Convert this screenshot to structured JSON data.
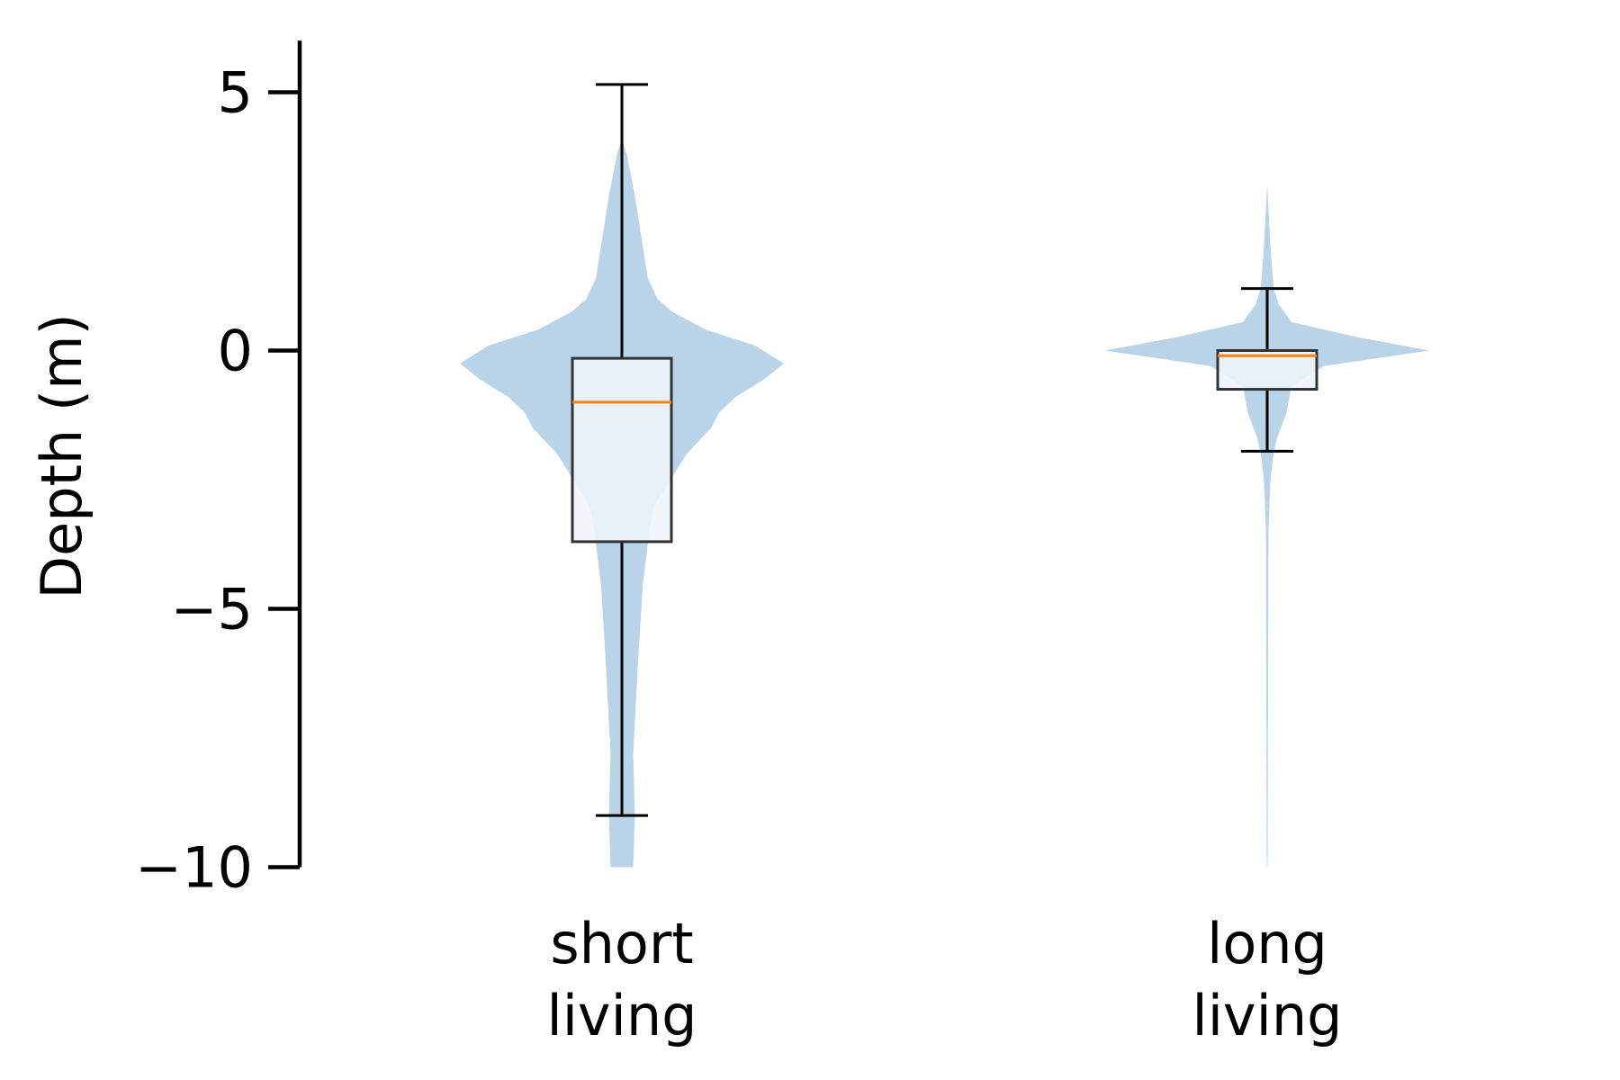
{
  "chart_data": {
    "type": "violin",
    "ylabel": "Depth (m)",
    "xlabel": "",
    "ylim": [
      -10,
      6
    ],
    "yticks": [
      {
        "value": 5,
        "label": "5"
      },
      {
        "value": 0,
        "label": "0"
      },
      {
        "value": -5,
        "label": "−5"
      },
      {
        "value": -10,
        "label": "−10"
      }
    ],
    "grid": false,
    "colors": {
      "violin": "#b9d4e8",
      "median": "#ff7f0e",
      "box_fill": "#f0f5fa",
      "box_edge": "#333333",
      "axis": "#000000"
    },
    "groups": [
      {
        "label_lines": [
          "short",
          "living"
        ],
        "violin_profile": [
          [
            -10.0,
            0.07
          ],
          [
            -9.0,
            0.08
          ],
          [
            -7.8,
            0.07
          ],
          [
            -6.0,
            0.1
          ],
          [
            -4.5,
            0.13
          ],
          [
            -3.5,
            0.17
          ],
          [
            -3.0,
            0.2
          ],
          [
            -2.5,
            0.3
          ],
          [
            -2.0,
            0.4
          ],
          [
            -1.5,
            0.55
          ],
          [
            -1.2,
            0.6
          ],
          [
            -0.9,
            0.7
          ],
          [
            -0.55,
            0.88
          ],
          [
            -0.25,
            1.0
          ],
          [
            0.1,
            0.82
          ],
          [
            0.4,
            0.52
          ],
          [
            0.75,
            0.31
          ],
          [
            1.0,
            0.22
          ],
          [
            1.4,
            0.16
          ],
          [
            2.2,
            0.12
          ],
          [
            3.0,
            0.08
          ],
          [
            3.8,
            0.03
          ],
          [
            4.1,
            0.0
          ]
        ],
        "box": {
          "q1": -3.7,
          "median": -1.0,
          "q3": -0.15,
          "whisker_low": -9.0,
          "whisker_high": 5.15
        }
      },
      {
        "label_lines": [
          "long",
          "living"
        ],
        "violin_profile": [
          [
            -10.0,
            0.003
          ],
          [
            -6.0,
            0.006
          ],
          [
            -3.5,
            0.008
          ],
          [
            -2.5,
            0.02
          ],
          [
            -2.0,
            0.04
          ],
          [
            -1.7,
            0.06
          ],
          [
            -1.2,
            0.12
          ],
          [
            -0.7,
            0.15
          ],
          [
            -0.3,
            0.35
          ],
          [
            0.0,
            1.0
          ],
          [
            0.25,
            0.57
          ],
          [
            0.55,
            0.15
          ],
          [
            0.9,
            0.07
          ],
          [
            1.2,
            0.04
          ],
          [
            2.0,
            0.02
          ],
          [
            3.0,
            0.004
          ],
          [
            3.2,
            0.0
          ]
        ],
        "box": {
          "q1": -0.75,
          "median": -0.1,
          "q3": 0.0,
          "whisker_low": -1.95,
          "whisker_high": 1.2
        }
      }
    ]
  }
}
